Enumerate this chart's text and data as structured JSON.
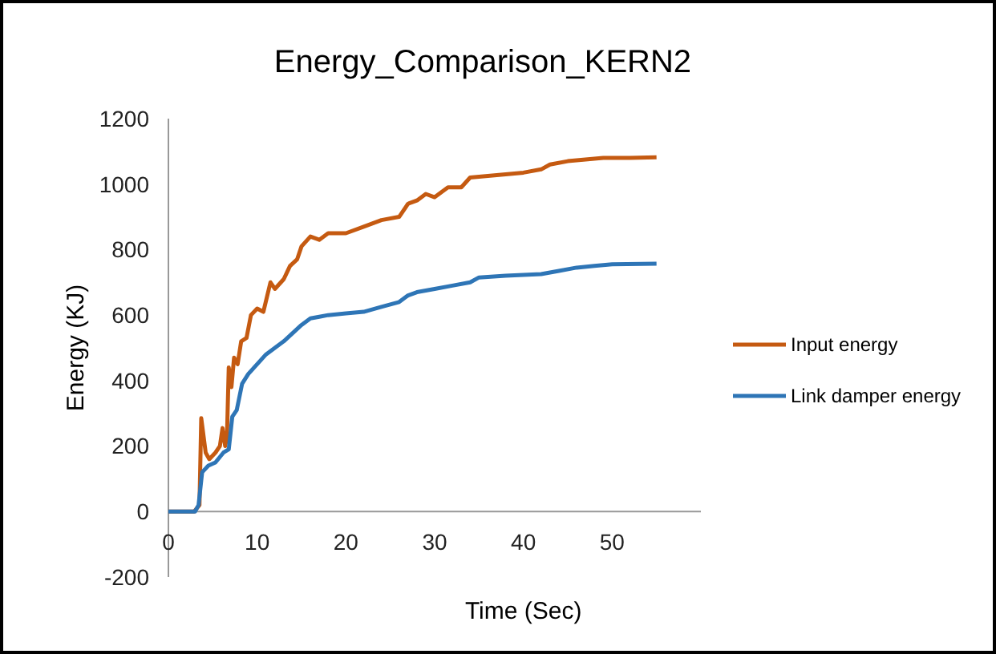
{
  "chart_data": {
    "type": "line",
    "title": "Energy_Comparison_KERN2",
    "xlabel": "Time (Sec)",
    "ylabel": "Energy (KJ)",
    "xlim": [
      0,
      60
    ],
    "xticks": [
      0,
      10,
      20,
      30,
      40,
      50
    ],
    "ylim": [
      -200,
      1200
    ],
    "yticks": [
      -200,
      0,
      200,
      400,
      600,
      800,
      1000,
      1200
    ],
    "grid": false,
    "legend": "right",
    "marker": "none",
    "line_style": "solid",
    "series": [
      {
        "name": "Input energy",
        "color": "#c55a11",
        "x": [
          0,
          2.9,
          3.5,
          3.7,
          4.2,
          4.6,
          5.3,
          5.8,
          6.1,
          6.4,
          6.6,
          6.8,
          7.1,
          7.4,
          7.8,
          8.2,
          8.8,
          9.3,
          10,
          10.7,
          11.5,
          12,
          13,
          13.7,
          14.5,
          15,
          16,
          17,
          18,
          20,
          22,
          24,
          26,
          27,
          28,
          29,
          30,
          31.5,
          33,
          34,
          36,
          38,
          40,
          42,
          43,
          45,
          47,
          49,
          52,
          55
        ],
        "values": [
          0,
          0,
          20,
          285,
          180,
          160,
          180,
          200,
          255,
          200,
          230,
          440,
          380,
          470,
          450,
          520,
          530,
          600,
          620,
          610,
          700,
          680,
          710,
          750,
          770,
          810,
          840,
          830,
          850,
          850,
          870,
          890,
          900,
          940,
          950,
          970,
          960,
          990,
          990,
          1020,
          1025,
          1030,
          1035,
          1045,
          1060,
          1070,
          1075,
          1080,
          1080,
          1082
        ]
      },
      {
        "name": "Link damper energy",
        "color": "#2e75b6",
        "x": [
          0,
          3,
          3.4,
          3.8,
          4.5,
          5.3,
          6.2,
          6.8,
          7.2,
          7.7,
          8.3,
          9,
          10,
          11,
          12,
          13,
          14,
          15,
          16,
          17,
          18,
          20,
          22,
          24,
          26,
          27,
          28,
          30,
          32,
          34,
          35,
          38,
          42,
          44,
          46,
          48,
          50,
          55
        ],
        "values": [
          0,
          0,
          20,
          120,
          140,
          150,
          180,
          190,
          290,
          310,
          390,
          420,
          450,
          480,
          500,
          520,
          545,
          570,
          590,
          595,
          600,
          605,
          610,
          625,
          640,
          660,
          670,
          680,
          690,
          700,
          715,
          720,
          725,
          735,
          745,
          750,
          755,
          757
        ]
      }
    ]
  }
}
